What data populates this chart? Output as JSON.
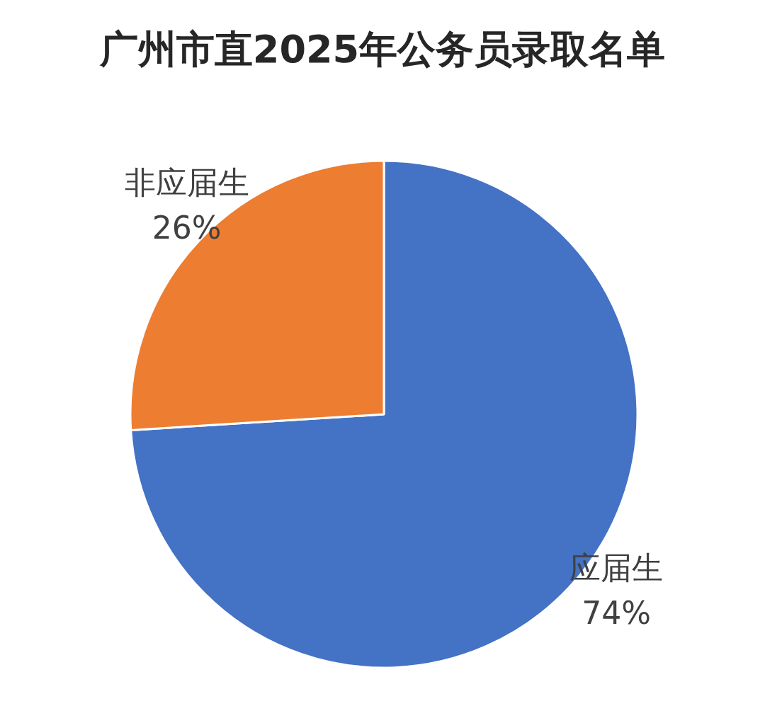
{
  "chart_data": {
    "type": "pie",
    "title": "广州市直2025年公务员录取名单",
    "categories": [
      "应届生",
      "非应届生"
    ],
    "values": [
      74,
      26
    ],
    "colors": [
      "#4472c4",
      "#ed7d31"
    ],
    "value_labels": [
      "74%",
      "26%"
    ],
    "legend": false
  }
}
